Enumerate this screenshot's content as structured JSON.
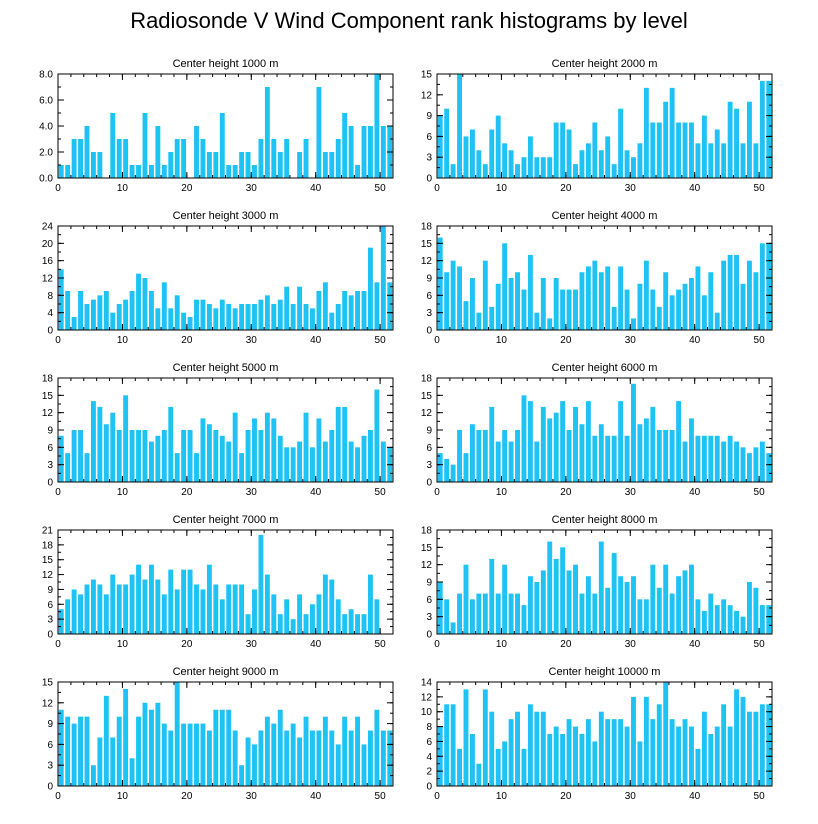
{
  "title": "Radiosonde V Wind Component rank histograms by level",
  "colors": {
    "bar": "#1ec3f3",
    "axis": "#000000"
  },
  "chart_data": [
    {
      "type": "bar",
      "title": "Center height 1000 m",
      "xlim": [
        0,
        52
      ],
      "ylim": [
        0,
        8
      ],
      "xticks": [
        0,
        10,
        20,
        30,
        40,
        50
      ],
      "yticks": [
        0,
        2,
        4,
        6,
        8
      ],
      "ytick_labels": [
        "0.0",
        "2.0",
        "4.0",
        "6.0",
        "8.0"
      ],
      "values": [
        1,
        1,
        3,
        3,
        4,
        2,
        2,
        0,
        5,
        3,
        3,
        1,
        1,
        5,
        1,
        4,
        1,
        2,
        3,
        3,
        0,
        4,
        3,
        2,
        2,
        5,
        1,
        1,
        2,
        2,
        1,
        3,
        7,
        3,
        2,
        3,
        0,
        2,
        3,
        0,
        7,
        2,
        2,
        3,
        5,
        4,
        1,
        4,
        4,
        8,
        4,
        4
      ]
    },
    {
      "type": "bar",
      "title": "Center height 2000 m",
      "xlim": [
        0,
        52
      ],
      "ylim": [
        0,
        15
      ],
      "xticks": [
        0,
        10,
        20,
        30,
        40,
        50
      ],
      "yticks": [
        0,
        3,
        6,
        9,
        12,
        15
      ],
      "ytick_labels": [
        "0",
        "3",
        "6",
        "9",
        "12",
        "15"
      ],
      "values": [
        9,
        10,
        2,
        15,
        6,
        7,
        4,
        2,
        7,
        9,
        5,
        4,
        2,
        3,
        6,
        3,
        3,
        3,
        8,
        8,
        7,
        2,
        4,
        5,
        8,
        4,
        6,
        2,
        10,
        4,
        3,
        5,
        13,
        8,
        8,
        11,
        13,
        8,
        8,
        8,
        5,
        9,
        5,
        7,
        5,
        11,
        10,
        5,
        11,
        5,
        14,
        14
      ]
    },
    {
      "type": "bar",
      "title": "Center height 3000 m",
      "xlim": [
        0,
        52
      ],
      "ylim": [
        0,
        24
      ],
      "xticks": [
        0,
        10,
        20,
        30,
        40,
        50
      ],
      "yticks": [
        0,
        4,
        8,
        12,
        16,
        20,
        24
      ],
      "ytick_labels": [
        "0",
        "4",
        "8",
        "12",
        "16",
        "20",
        "24"
      ],
      "values": [
        14,
        9,
        3,
        9,
        6,
        7,
        8,
        9,
        4,
        6,
        7,
        9,
        13,
        12,
        9,
        5,
        11,
        5,
        8,
        4,
        3,
        7,
        7,
        6,
        5,
        7,
        6,
        5,
        6,
        6,
        6,
        7,
        8,
        6,
        7,
        10,
        6,
        10,
        6,
        5,
        9,
        11,
        4,
        6,
        9,
        8,
        9,
        9,
        19,
        11,
        24,
        11
      ]
    },
    {
      "type": "bar",
      "title": "Center height 4000 m",
      "xlim": [
        0,
        52
      ],
      "ylim": [
        0,
        18
      ],
      "xticks": [
        0,
        10,
        20,
        30,
        40,
        50
      ],
      "yticks": [
        0,
        3,
        6,
        9,
        12,
        15,
        18
      ],
      "ytick_labels": [
        "0",
        "3",
        "6",
        "9",
        "12",
        "15",
        "18"
      ],
      "values": [
        16,
        10,
        12,
        11,
        5,
        9,
        3,
        12,
        4,
        8,
        15,
        9,
        10,
        7,
        13,
        3,
        9,
        2,
        9,
        7,
        7,
        7,
        10,
        11,
        12,
        10,
        11,
        4,
        11,
        7,
        2,
        8,
        12,
        7,
        4,
        10,
        6,
        7,
        8,
        9,
        11,
        6,
        10,
        3,
        12,
        13,
        13,
        8,
        12,
        10,
        15,
        15
      ]
    },
    {
      "type": "bar",
      "title": "Center height 5000 m",
      "xlim": [
        0,
        52
      ],
      "ylim": [
        0,
        18
      ],
      "xticks": [
        0,
        10,
        20,
        30,
        40,
        50
      ],
      "yticks": [
        0,
        3,
        6,
        9,
        12,
        15,
        18
      ],
      "ytick_labels": [
        "0",
        "3",
        "6",
        "9",
        "12",
        "15",
        "18"
      ],
      "values": [
        8,
        5,
        9,
        9,
        5,
        14,
        13,
        10,
        12,
        9,
        15,
        9,
        9,
        9,
        7,
        8,
        9,
        13,
        5,
        9,
        9,
        5,
        11,
        10,
        9,
        8,
        7,
        12,
        5,
        9,
        11,
        9,
        12,
        11,
        8,
        6,
        6,
        7,
        12,
        6,
        11,
        7,
        9,
        13,
        13,
        7,
        6,
        8,
        9,
        16,
        7,
        6
      ]
    },
    {
      "type": "bar",
      "title": "Center height 6000 m",
      "xlim": [
        0,
        52
      ],
      "ylim": [
        0,
        18
      ],
      "xticks": [
        0,
        10,
        20,
        30,
        40,
        50
      ],
      "yticks": [
        0,
        3,
        6,
        9,
        12,
        15,
        18
      ],
      "ytick_labels": [
        "0",
        "3",
        "6",
        "9",
        "12",
        "15",
        "18"
      ],
      "values": [
        5,
        4,
        3,
        9,
        5,
        10,
        9,
        9,
        13,
        7,
        9,
        7,
        9,
        15,
        14,
        7,
        13,
        11,
        12,
        14,
        9,
        13,
        10,
        14,
        8,
        10,
        8,
        8,
        14,
        8,
        17,
        10,
        11,
        13,
        9,
        9,
        9,
        14,
        7,
        11,
        8,
        8,
        8,
        8,
        7,
        8,
        7,
        6,
        5,
        6,
        7,
        5
      ]
    },
    {
      "type": "bar",
      "title": "Center height 7000 m",
      "xlim": [
        0,
        52
      ],
      "ylim": [
        0,
        21
      ],
      "xticks": [
        0,
        10,
        20,
        30,
        40,
        50
      ],
      "yticks": [
        0,
        3,
        6,
        9,
        12,
        15,
        18,
        21
      ],
      "ytick_labels": [
        "0",
        "3",
        "6",
        "9",
        "12",
        "15",
        "18",
        "21"
      ],
      "values": [
        5,
        7,
        9,
        8,
        10,
        11,
        10,
        8,
        12,
        10,
        10,
        12,
        14,
        11,
        14,
        11,
        8,
        13,
        9,
        13,
        13,
        10,
        9,
        14,
        10,
        7,
        10,
        10,
        10,
        4,
        9,
        20,
        12,
        8,
        4,
        7,
        3,
        8,
        4,
        6,
        8,
        12,
        11,
        7,
        4,
        5,
        4,
        4,
        12,
        7,
        0,
        0
      ]
    },
    {
      "type": "bar",
      "title": "Center height 8000 m",
      "xlim": [
        0,
        52
      ],
      "ylim": [
        0,
        18
      ],
      "xticks": [
        0,
        10,
        20,
        30,
        40,
        50
      ],
      "yticks": [
        0,
        3,
        6,
        9,
        12,
        15,
        18
      ],
      "ytick_labels": [
        "0",
        "3",
        "6",
        "9",
        "12",
        "15",
        "18"
      ],
      "values": [
        9,
        6,
        2,
        7,
        12,
        6,
        7,
        7,
        13,
        7,
        12,
        7,
        7,
        5,
        10,
        9,
        11,
        16,
        13,
        15,
        11,
        12,
        7,
        10,
        7,
        16,
        8,
        14,
        10,
        9,
        10,
        6,
        6,
        12,
        8,
        12,
        7,
        10,
        11,
        12,
        6,
        4,
        7,
        5,
        6,
        5,
        4,
        3,
        9,
        8,
        5,
        5
      ]
    },
    {
      "type": "bar",
      "title": "Center height 9000 m",
      "xlim": [
        0,
        52
      ],
      "ylim": [
        0,
        15
      ],
      "xticks": [
        0,
        10,
        20,
        30,
        40,
        50
      ],
      "yticks": [
        0,
        3,
        6,
        9,
        12,
        15
      ],
      "ytick_labels": [
        "0",
        "3",
        "6",
        "9",
        "12",
        "15"
      ],
      "values": [
        11,
        10,
        9,
        10,
        10,
        3,
        7,
        13,
        7,
        10,
        14,
        4,
        10,
        12,
        11,
        12,
        9,
        8,
        15,
        9,
        9,
        9,
        9,
        8,
        11,
        11,
        11,
        8,
        3,
        7,
        6,
        8,
        10,
        9,
        11,
        8,
        9,
        7,
        10,
        8,
        8,
        10,
        8,
        6,
        10,
        8,
        10,
        6,
        8,
        11,
        8,
        8
      ]
    },
    {
      "type": "bar",
      "title": "Center height 10000 m",
      "xlim": [
        0,
        52
      ],
      "ylim": [
        0,
        14
      ],
      "xticks": [
        0,
        10,
        20,
        30,
        40,
        50
      ],
      "yticks": [
        0,
        2,
        4,
        6,
        8,
        10,
        12,
        14
      ],
      "ytick_labels": [
        "0",
        "2",
        "4",
        "6",
        "8",
        "10",
        "12",
        "14"
      ],
      "values": [
        8,
        11,
        11,
        5,
        13,
        7,
        3,
        13,
        10,
        5,
        6,
        9,
        10,
        5,
        11,
        10,
        10,
        7,
        8,
        7,
        9,
        8,
        7,
        9,
        6,
        10,
        9,
        9,
        9,
        8,
        12,
        6,
        12,
        9,
        11,
        14,
        9,
        8,
        9,
        8,
        5,
        10,
        7,
        8,
        11,
        8,
        13,
        12,
        10,
        10,
        11,
        11
      ]
    }
  ]
}
